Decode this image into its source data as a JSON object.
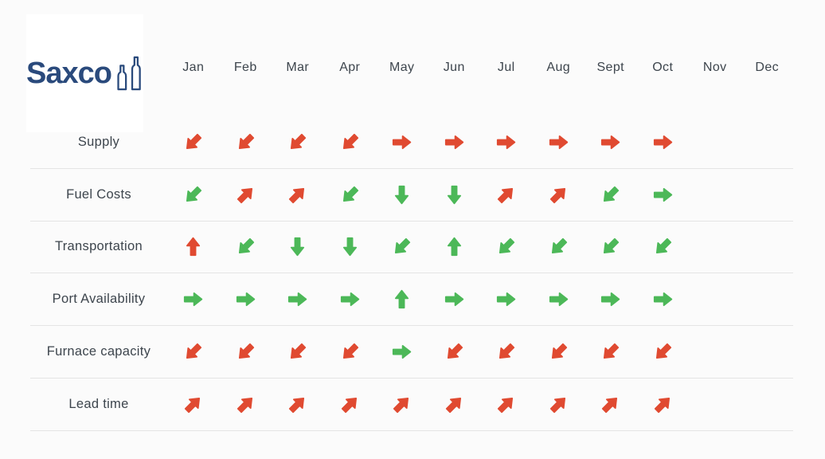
{
  "logo": {
    "text": "Saxco",
    "color": "#2A4A7C"
  },
  "months": [
    "Jan",
    "Feb",
    "Mar",
    "Apr",
    "May",
    "Jun",
    "Jul",
    "Aug",
    "Sept",
    "Oct",
    "Nov",
    "Dec"
  ],
  "colors": {
    "positive": "#4CB858",
    "negative": "#E04A31"
  },
  "chart_data": {
    "type": "table",
    "title": "",
    "description": "Monthly trend matrix: arrow direction = trend of metric, green = favorable, red = unfavorable. Nov and Dec have no data.",
    "categories": [
      "Jan",
      "Feb",
      "Mar",
      "Apr",
      "May",
      "Jun",
      "Jul",
      "Aug",
      "Sept",
      "Oct",
      "Nov",
      "Dec"
    ],
    "rows": [
      {
        "label": "Supply",
        "cells": [
          "down-left negative",
          "down-left negative",
          "down-left negative",
          "down-left negative",
          "right negative",
          "right negative",
          "right negative",
          "right negative",
          "right negative",
          "right negative",
          null,
          null
        ]
      },
      {
        "label": "Fuel Costs",
        "cells": [
          "down-left positive",
          "up-right negative",
          "up-right negative",
          "down-left positive",
          "down positive",
          "down positive",
          "up-right negative",
          "up-right negative",
          "down-left positive",
          "right positive",
          null,
          null
        ]
      },
      {
        "label": "Transportation",
        "cells": [
          "up negative",
          "down-left positive",
          "down positive",
          "down positive",
          "down-left positive",
          "up positive",
          "down-left positive",
          "down-left positive",
          "down-left positive",
          "down-left positive",
          null,
          null
        ]
      },
      {
        "label": "Port Availability",
        "cells": [
          "right positive",
          "right positive",
          "right positive",
          "right positive",
          "up positive",
          "right positive",
          "right positive",
          "right positive",
          "right positive",
          "right positive",
          null,
          null
        ]
      },
      {
        "label": "Furnace capacity",
        "cells": [
          "down-left negative",
          "down-left negative",
          "down-left negative",
          "down-left negative",
          "right positive",
          "down-left negative",
          "down-left negative",
          "down-left negative",
          "down-left negative",
          "down-left negative",
          null,
          null
        ]
      },
      {
        "label": "Lead time",
        "cells": [
          "up-right negative",
          "up-right negative",
          "up-right negative",
          "up-right negative",
          "up-right negative",
          "up-right negative",
          "up-right negative",
          "up-right negative",
          "up-right negative",
          "up-right negative",
          null,
          null
        ]
      }
    ]
  }
}
